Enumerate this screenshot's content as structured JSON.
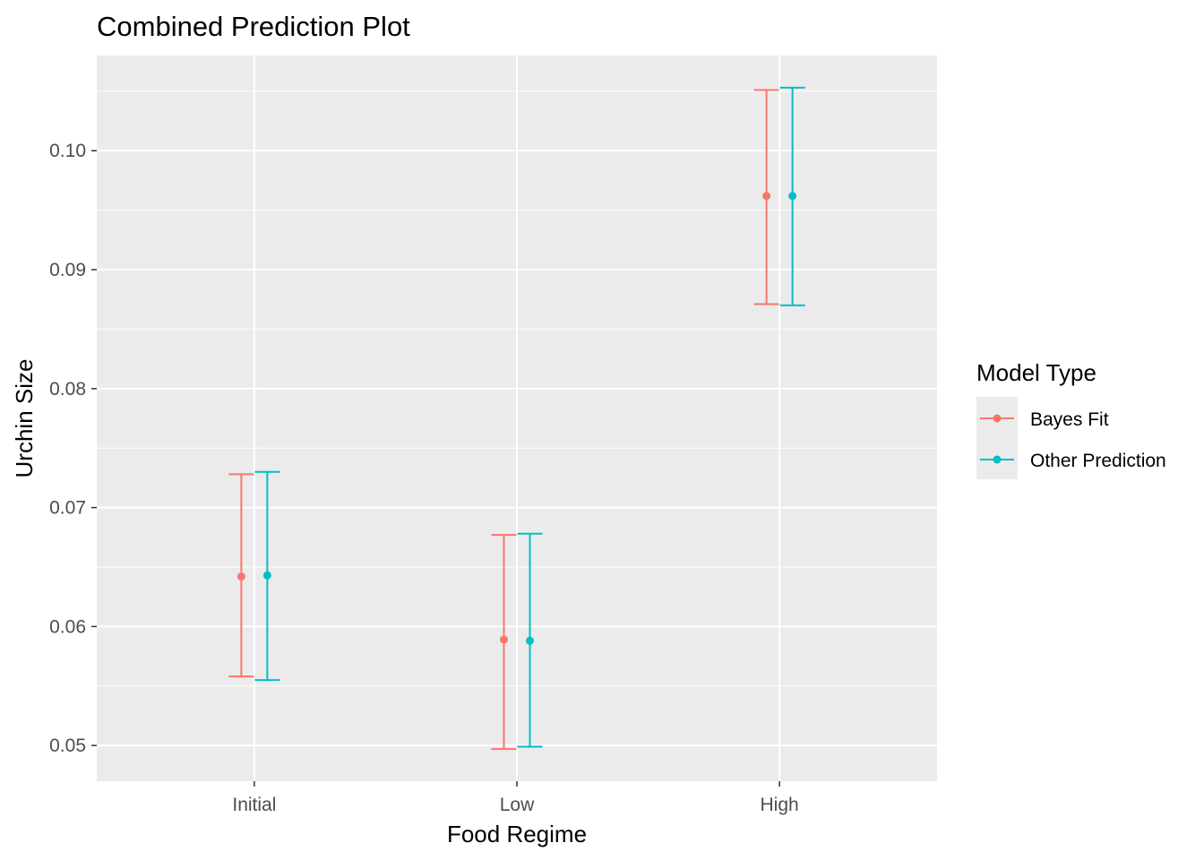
{
  "chart_data": {
    "type": "errorbar",
    "title": "Combined Prediction Plot",
    "xlabel": "Food Regime",
    "ylabel": "Urchin Size",
    "categories": [
      "Initial",
      "Low",
      "High"
    ],
    "ylim": [
      0.047,
      0.108
    ],
    "yticks": [
      0.05,
      0.06,
      0.07,
      0.08,
      0.09,
      0.1
    ],
    "ytick_labels": [
      "0.05",
      "0.06",
      "0.07",
      "0.08",
      "0.09",
      "0.10"
    ],
    "grid": true,
    "legend": {
      "title": "Model Type",
      "position": "right"
    },
    "series": [
      {
        "name": "Bayes Fit",
        "color": "#F8766D",
        "values": [
          0.0642,
          0.0589,
          0.0962
        ],
        "lower": [
          0.0558,
          0.0497,
          0.0871
        ],
        "upper": [
          0.0728,
          0.0677,
          0.1051
        ]
      },
      {
        "name": "Other Prediction",
        "color": "#00BFC4",
        "values": [
          0.0643,
          0.0588,
          0.0962
        ],
        "lower": [
          0.0555,
          0.0499,
          0.087
        ],
        "upper": [
          0.073,
          0.0678,
          0.1053
        ]
      }
    ]
  }
}
